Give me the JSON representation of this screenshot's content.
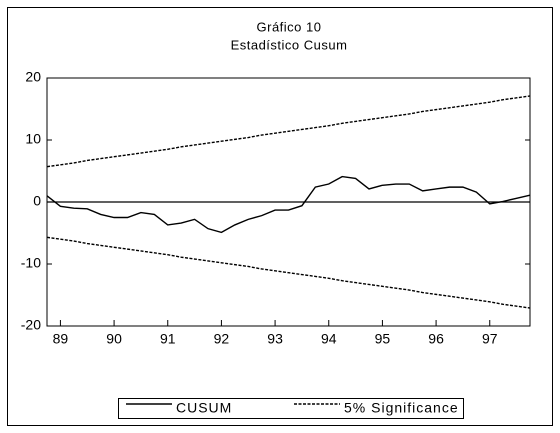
{
  "chart_data": {
    "type": "line",
    "title": "Gráfico 10",
    "subtitle": "Estadístico Cusum",
    "x": [
      88.75,
      89.0,
      89.25,
      89.5,
      89.75,
      90.0,
      90.25,
      90.5,
      90.75,
      91.0,
      91.25,
      91.5,
      91.75,
      92.0,
      92.25,
      92.5,
      92.75,
      93.0,
      93.25,
      93.5,
      93.75,
      94.0,
      94.25,
      94.5,
      94.75,
      95.0,
      95.25,
      95.5,
      95.75,
      96.0,
      96.25,
      96.5,
      96.75,
      97.0,
      97.25,
      97.5,
      97.75
    ],
    "series": [
      {
        "name": "CUSUM",
        "color": "#000000",
        "dash": false,
        "values": [
          1,
          -0.7,
          -1,
          -1.1,
          -2,
          -2.5,
          -2.5,
          -1.7,
          -2,
          -3.7,
          -3.4,
          -2.8,
          -4.3,
          -4.9,
          -3.7,
          -2.8,
          -2.2,
          -1.3,
          -1.3,
          -0.6,
          2.4,
          2.9,
          4.1,
          3.8,
          2.1,
          2.7,
          2.9,
          2.9,
          1.8,
          2.1,
          2.4,
          2.4,
          1.6,
          -0.3,
          0.1,
          0.6,
          1.1
        ]
      },
      {
        "name": "5% Significance",
        "color": "#000000",
        "dash": true,
        "values": [
          5.7,
          6.0,
          6.3,
          6.7,
          7.0,
          7.3,
          7.6,
          7.9,
          8.2,
          8.5,
          8.9,
          9.2,
          9.5,
          9.8,
          10.1,
          10.4,
          10.8,
          11.1,
          11.4,
          11.7,
          12.0,
          12.3,
          12.7,
          13.0,
          13.3,
          13.6,
          13.9,
          14.2,
          14.6,
          14.9,
          15.2,
          15.5,
          15.8,
          16.1,
          16.5,
          16.8,
          17.1
        ],
        "lower": [
          -5.7,
          -6.0,
          -6.3,
          -6.7,
          -7.0,
          -7.3,
          -7.6,
          -7.9,
          -8.2,
          -8.5,
          -8.9,
          -9.2,
          -9.5,
          -9.8,
          -10.1,
          -10.4,
          -10.8,
          -11.1,
          -11.4,
          -11.7,
          -12.0,
          -12.3,
          -12.7,
          -13.0,
          -13.3,
          -13.6,
          -13.9,
          -14.2,
          -14.6,
          -14.9,
          -15.2,
          -15.5,
          -15.8,
          -16.1,
          -16.5,
          -16.8,
          -17.1
        ]
      }
    ],
    "xlim": [
      88.75,
      97.75
    ],
    "xticks": [
      89,
      90,
      91,
      92,
      93,
      94,
      95,
      96,
      97
    ],
    "ylim": [
      -20,
      20
    ],
    "yticks": [
      -20,
      -10,
      0,
      10,
      20
    ],
    "zero_line": true,
    "legend": "bottom"
  }
}
